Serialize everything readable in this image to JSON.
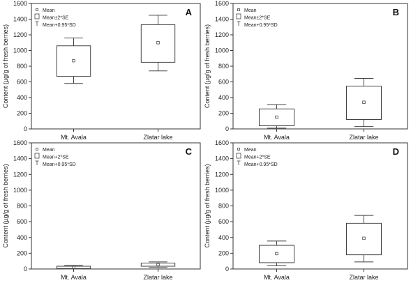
{
  "chart_data": [
    {
      "type": "boxplot",
      "panel_label": "A",
      "categories": [
        "Mt. Avala",
        "Zlatar lake"
      ],
      "ylabel": "Content (µg/g of fresh berries)",
      "ylim": [
        0,
        1600
      ],
      "yticks": [
        0,
        200,
        400,
        600,
        800,
        1000,
        1200,
        1400,
        1600
      ],
      "legend": [
        "Mean",
        "Mean±2*SE",
        "Mean+0.95*SD"
      ],
      "legend_position": "top-left",
      "boxes": [
        {
          "mean": 870,
          "box_low": 670,
          "box_high": 1060,
          "whisker_low": 580,
          "whisker_high": 1160
        },
        {
          "mean": 1100,
          "box_low": 850,
          "box_high": 1330,
          "whisker_low": 740,
          "whisker_high": 1450
        }
      ]
    },
    {
      "type": "boxplot",
      "panel_label": "B",
      "categories": [
        "Mt. Avala",
        "Zlatar lake"
      ],
      "ylabel": "Content (µg/g of fresh berries)",
      "ylim": [
        0,
        1600
      ],
      "yticks": [
        0,
        200,
        400,
        600,
        800,
        1000,
        1200,
        1400,
        1600
      ],
      "legend": [
        "Mean",
        "Mean±2*SE",
        "Mean+0.95*SD"
      ],
      "legend_position": "top-left",
      "boxes": [
        {
          "mean": 150,
          "box_low": 40,
          "box_high": 255,
          "whisker_low": 10,
          "whisker_high": 310
        },
        {
          "mean": 340,
          "box_low": 120,
          "box_high": 545,
          "whisker_low": 30,
          "whisker_high": 645
        }
      ]
    },
    {
      "type": "boxplot",
      "panel_label": "C",
      "categories": [
        "Mt. Avala",
        "Zlatar lake"
      ],
      "ylabel": "Content (µg/g of fresh berries)",
      "ylim": [
        0,
        1600
      ],
      "yticks": [
        0,
        200,
        400,
        600,
        800,
        1000,
        1200,
        1400,
        1600
      ],
      "legend": [
        "Mean",
        "Mean+2*SE",
        "Mean+0.95*SD"
      ],
      "legend_position": "top-left",
      "boxes": [
        {
          "mean": 20,
          "box_low": 5,
          "box_high": 35,
          "whisker_low": 0,
          "whisker_high": 45
        },
        {
          "mean": 55,
          "box_low": 35,
          "box_high": 75,
          "whisker_low": 20,
          "whisker_high": 90
        }
      ]
    },
    {
      "type": "boxplot",
      "panel_label": "D",
      "categories": [
        "Mt. Avala",
        "Zlatar lake"
      ],
      "ylabel": "Content (µg/g of fresh berries)",
      "ylim": [
        0,
        1600
      ],
      "yticks": [
        0,
        200,
        400,
        600,
        800,
        1000,
        1200,
        1400,
        1600
      ],
      "legend": [
        "Mean",
        "Mean+2*SE",
        "Mean+0.95*SD"
      ],
      "legend_position": "top-left",
      "boxes": [
        {
          "mean": 195,
          "box_low": 80,
          "box_high": 300,
          "whisker_low": 40,
          "whisker_high": 355
        },
        {
          "mean": 390,
          "box_low": 180,
          "box_high": 580,
          "whisker_low": 90,
          "whisker_high": 680
        }
      ]
    }
  ]
}
